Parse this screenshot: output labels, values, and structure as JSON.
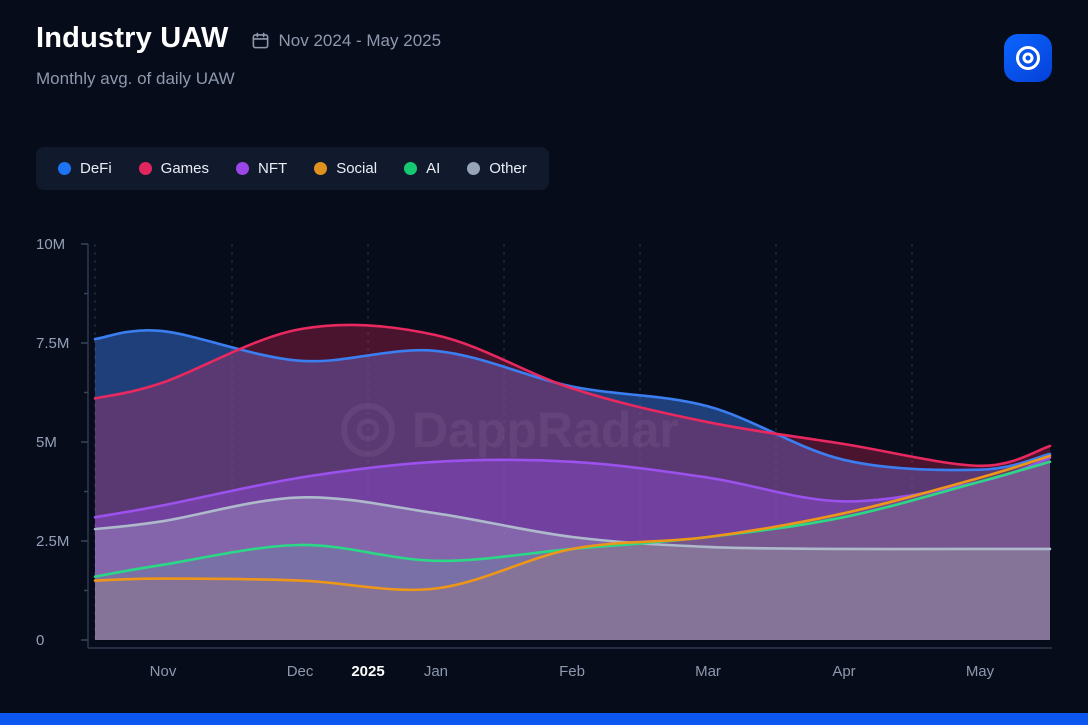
{
  "header": {
    "title": "Industry UAW",
    "date_range": "Nov 2024 - May 2025",
    "subtitle": "Monthly avg. of daily UAW"
  },
  "brand": {
    "logo_color_start": "#0b66ff",
    "logo_color_end": "#0540d8",
    "bottom_bar_color": "#0b57f0"
  },
  "watermark": {
    "text": "DappRadar"
  },
  "legend": {
    "items": [
      {
        "label": "DeFi",
        "color": "#1d74f2"
      },
      {
        "label": "Games",
        "color": "#e0255f"
      },
      {
        "label": "NFT",
        "color": "#9a46e8"
      },
      {
        "label": "Social",
        "color": "#e0921f"
      },
      {
        "label": "AI",
        "color": "#17c873"
      },
      {
        "label": "Other",
        "color": "#97a3b7"
      }
    ]
  },
  "chart_data": {
    "type": "area",
    "title": "Industry UAW",
    "subtitle": "Monthly avg. of daily UAW",
    "x_range_label": "Nov 2024 - May 2025",
    "unit": "M UAW",
    "ylim": [
      0,
      10
    ],
    "grid": "vertical-dashed",
    "legend_position": "top",
    "y_ticks": [
      {
        "label": "10M",
        "value": 10
      },
      {
        "label": "7.5M",
        "value": 7.5
      },
      {
        "label": "5M",
        "value": 5
      },
      {
        "label": "2.5M",
        "value": 2.5
      },
      {
        "label": "0",
        "value": 0
      }
    ],
    "y_minor_ticks": [
      8.75,
      6.25,
      3.75,
      1.25
    ],
    "x_positions": [
      0,
      0.071,
      0.215,
      0.357,
      0.5,
      0.642,
      0.784,
      0.927,
      1
    ],
    "x_point_labels": [
      "start",
      "Nov",
      "Dec",
      "Jan",
      "Feb",
      "Mar",
      "Apr",
      "May",
      "end"
    ],
    "x_tick_labels": [
      {
        "label": "Nov",
        "pos": 0.0712
      },
      {
        "label": "Dec",
        "pos": 0.2147
      },
      {
        "label": "Jan",
        "pos": 0.357
      },
      {
        "label": "Feb",
        "pos": 0.4995
      },
      {
        "label": "Mar",
        "pos": 0.6419
      },
      {
        "label": "Apr",
        "pos": 0.7843
      },
      {
        "label": "May",
        "pos": 0.9267
      }
    ],
    "year_label": {
      "label": "2025",
      "pos": 0.2859
    },
    "gridline_positions": [
      0,
      0.1435,
      0.2859,
      0.4283,
      0.5707,
      0.7131,
      0.8555
    ],
    "series": [
      {
        "name": "DeFi",
        "color": "#3b7ef0",
        "fill_opacity": 0.45,
        "values": [
          7.6,
          7.8,
          7.05,
          7.3,
          6.4,
          5.9,
          4.55,
          4.3,
          4.7
        ]
      },
      {
        "name": "Games",
        "color": "#e8295f",
        "fill_opacity": 0.3,
        "values": [
          6.1,
          6.5,
          7.85,
          7.7,
          6.35,
          5.5,
          4.95,
          4.4,
          4.9
        ]
      },
      {
        "name": "NFT",
        "color": "#9b51ec",
        "fill_opacity": 0.38,
        "values": [
          3.1,
          3.4,
          4.1,
          4.5,
          4.5,
          4.1,
          3.5,
          4.0,
          4.6
        ]
      },
      {
        "name": "Other",
        "color": "#aeb9cb",
        "fill_opacity": 0.3,
        "values": [
          2.8,
          3.0,
          3.6,
          3.2,
          2.6,
          2.35,
          2.3,
          2.3,
          2.3
        ]
      },
      {
        "name": "AI",
        "color": "#2bd886",
        "fill_opacity": 0.1,
        "values": [
          1.6,
          1.9,
          2.4,
          2.0,
          2.3,
          2.6,
          3.1,
          4.0,
          4.5
        ]
      },
      {
        "name": "Social",
        "color": "#ee9617",
        "fill_opacity": 0.1,
        "values": [
          1.5,
          1.55,
          1.5,
          1.3,
          2.3,
          2.6,
          3.2,
          4.1,
          4.65
        ]
      }
    ]
  }
}
